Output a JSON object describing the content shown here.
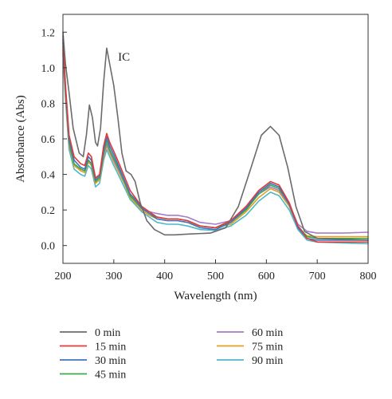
{
  "chart_data": {
    "type": "line",
    "title": "",
    "xlabel": "Wavelength (nm)",
    "ylabel": "Absorbance (Abs)",
    "xlim": [
      200,
      800
    ],
    "ylim": [
      -0.1,
      1.3
    ],
    "xticks": [
      200,
      300,
      400,
      500,
      600,
      700,
      800
    ],
    "yticks": [
      "0.0",
      "0.2",
      "0.4",
      "0.6",
      "0.8",
      "1.0",
      "1.2"
    ],
    "grid": false,
    "legend_position": "bottom",
    "annotation": {
      "text": "IC",
      "x": 320,
      "y": 1.04
    },
    "series": [
      {
        "name": "0 min",
        "color": "#6b6b6b",
        "points": [
          [
            200,
            1.2
          ],
          [
            205,
            1.02
          ],
          [
            212,
            0.86
          ],
          [
            220,
            0.66
          ],
          [
            232,
            0.52
          ],
          [
            240,
            0.5
          ],
          [
            246,
            0.62
          ],
          [
            252,
            0.79
          ],
          [
            258,
            0.72
          ],
          [
            264,
            0.58
          ],
          [
            268,
            0.56
          ],
          [
            274,
            0.66
          ],
          [
            280,
            0.92
          ],
          [
            286,
            1.11
          ],
          [
            292,
            1.02
          ],
          [
            300,
            0.9
          ],
          [
            308,
            0.72
          ],
          [
            316,
            0.52
          ],
          [
            324,
            0.42
          ],
          [
            334,
            0.4
          ],
          [
            342,
            0.36
          ],
          [
            352,
            0.24
          ],
          [
            365,
            0.14
          ],
          [
            380,
            0.09
          ],
          [
            400,
            0.06
          ],
          [
            420,
            0.06
          ],
          [
            450,
            0.065
          ],
          [
            490,
            0.07
          ],
          [
            520,
            0.1
          ],
          [
            545,
            0.22
          ],
          [
            570,
            0.44
          ],
          [
            590,
            0.62
          ],
          [
            608,
            0.67
          ],
          [
            625,
            0.62
          ],
          [
            642,
            0.44
          ],
          [
            658,
            0.22
          ],
          [
            675,
            0.08
          ],
          [
            700,
            0.04
          ],
          [
            750,
            0.035
          ],
          [
            800,
            0.03
          ]
        ]
      },
      {
        "name": "15 min",
        "color": "#e03a3a",
        "points": [
          [
            200,
            1.18
          ],
          [
            205,
            0.9
          ],
          [
            212,
            0.62
          ],
          [
            222,
            0.5
          ],
          [
            235,
            0.46
          ],
          [
            243,
            0.45
          ],
          [
            250,
            0.52
          ],
          [
            256,
            0.5
          ],
          [
            264,
            0.38
          ],
          [
            272,
            0.4
          ],
          [
            280,
            0.56
          ],
          [
            286,
            0.63
          ],
          [
            292,
            0.58
          ],
          [
            300,
            0.53
          ],
          [
            312,
            0.45
          ],
          [
            322,
            0.38
          ],
          [
            332,
            0.31
          ],
          [
            342,
            0.27
          ],
          [
            355,
            0.22
          ],
          [
            370,
            0.19
          ],
          [
            385,
            0.16
          ],
          [
            405,
            0.15
          ],
          [
            425,
            0.15
          ],
          [
            445,
            0.14
          ],
          [
            470,
            0.11
          ],
          [
            500,
            0.1
          ],
          [
            530,
            0.14
          ],
          [
            560,
            0.22
          ],
          [
            585,
            0.31
          ],
          [
            608,
            0.36
          ],
          [
            625,
            0.34
          ],
          [
            645,
            0.24
          ],
          [
            662,
            0.11
          ],
          [
            680,
            0.04
          ],
          [
            700,
            0.02
          ],
          [
            750,
            0.02
          ],
          [
            800,
            0.02
          ]
        ]
      },
      {
        "name": "30 min",
        "color": "#3f72c4",
        "points": [
          [
            200,
            1.16
          ],
          [
            205,
            0.88
          ],
          [
            212,
            0.6
          ],
          [
            222,
            0.48
          ],
          [
            235,
            0.44
          ],
          [
            243,
            0.43
          ],
          [
            250,
            0.5
          ],
          [
            256,
            0.48
          ],
          [
            264,
            0.37
          ],
          [
            272,
            0.39
          ],
          [
            280,
            0.54
          ],
          [
            286,
            0.61
          ],
          [
            292,
            0.56
          ],
          [
            300,
            0.51
          ],
          [
            312,
            0.43
          ],
          [
            322,
            0.36
          ],
          [
            332,
            0.29
          ],
          [
            342,
            0.26
          ],
          [
            355,
            0.21
          ],
          [
            370,
            0.18
          ],
          [
            385,
            0.15
          ],
          [
            405,
            0.14
          ],
          [
            425,
            0.14
          ],
          [
            445,
            0.13
          ],
          [
            470,
            0.1
          ],
          [
            500,
            0.09
          ],
          [
            530,
            0.13
          ],
          [
            560,
            0.21
          ],
          [
            585,
            0.3
          ],
          [
            608,
            0.35
          ],
          [
            625,
            0.33
          ],
          [
            645,
            0.23
          ],
          [
            662,
            0.1
          ],
          [
            680,
            0.04
          ],
          [
            700,
            0.03
          ],
          [
            750,
            0.03
          ],
          [
            800,
            0.03
          ]
        ]
      },
      {
        "name": "45 min",
        "color": "#3ca84a",
        "points": [
          [
            200,
            1.14
          ],
          [
            205,
            0.86
          ],
          [
            212,
            0.58
          ],
          [
            222,
            0.46
          ],
          [
            235,
            0.43
          ],
          [
            243,
            0.42
          ],
          [
            250,
            0.48
          ],
          [
            256,
            0.46
          ],
          [
            264,
            0.36
          ],
          [
            272,
            0.38
          ],
          [
            280,
            0.52
          ],
          [
            286,
            0.59
          ],
          [
            292,
            0.54
          ],
          [
            300,
            0.49
          ],
          [
            312,
            0.42
          ],
          [
            322,
            0.35
          ],
          [
            332,
            0.28
          ],
          [
            342,
            0.25
          ],
          [
            355,
            0.21
          ],
          [
            370,
            0.18
          ],
          [
            385,
            0.16
          ],
          [
            405,
            0.15
          ],
          [
            425,
            0.15
          ],
          [
            445,
            0.14
          ],
          [
            470,
            0.11
          ],
          [
            500,
            0.1
          ],
          [
            530,
            0.13
          ],
          [
            560,
            0.2
          ],
          [
            585,
            0.29
          ],
          [
            608,
            0.34
          ],
          [
            625,
            0.32
          ],
          [
            645,
            0.23
          ],
          [
            662,
            0.11
          ],
          [
            680,
            0.05
          ],
          [
            700,
            0.04
          ],
          [
            750,
            0.04
          ],
          [
            800,
            0.04
          ]
        ]
      },
      {
        "name": "60 min",
        "color": "#a57cc9",
        "points": [
          [
            200,
            1.12
          ],
          [
            205,
            0.85
          ],
          [
            212,
            0.57
          ],
          [
            222,
            0.46
          ],
          [
            235,
            0.43
          ],
          [
            243,
            0.42
          ],
          [
            250,
            0.48
          ],
          [
            256,
            0.46
          ],
          [
            264,
            0.36
          ],
          [
            272,
            0.38
          ],
          [
            280,
            0.51
          ],
          [
            286,
            0.57
          ],
          [
            292,
            0.53
          ],
          [
            300,
            0.48
          ],
          [
            312,
            0.41
          ],
          [
            322,
            0.35
          ],
          [
            332,
            0.28
          ],
          [
            342,
            0.25
          ],
          [
            355,
            0.21
          ],
          [
            370,
            0.19
          ],
          [
            385,
            0.18
          ],
          [
            405,
            0.17
          ],
          [
            425,
            0.17
          ],
          [
            445,
            0.16
          ],
          [
            470,
            0.13
          ],
          [
            500,
            0.12
          ],
          [
            530,
            0.14
          ],
          [
            560,
            0.21
          ],
          [
            585,
            0.29
          ],
          [
            608,
            0.33
          ],
          [
            625,
            0.31
          ],
          [
            645,
            0.23
          ],
          [
            662,
            0.12
          ],
          [
            680,
            0.08
          ],
          [
            700,
            0.07
          ],
          [
            750,
            0.07
          ],
          [
            800,
            0.075
          ]
        ]
      },
      {
        "name": "75 min",
        "color": "#e0a020",
        "points": [
          [
            200,
            1.1
          ],
          [
            205,
            0.84
          ],
          [
            212,
            0.56
          ],
          [
            222,
            0.45
          ],
          [
            235,
            0.42
          ],
          [
            243,
            0.41
          ],
          [
            250,
            0.47
          ],
          [
            256,
            0.45
          ],
          [
            264,
            0.35
          ],
          [
            272,
            0.37
          ],
          [
            280,
            0.5
          ],
          [
            286,
            0.56
          ],
          [
            292,
            0.52
          ],
          [
            300,
            0.47
          ],
          [
            312,
            0.4
          ],
          [
            322,
            0.34
          ],
          [
            332,
            0.27
          ],
          [
            342,
            0.24
          ],
          [
            355,
            0.2
          ],
          [
            370,
            0.17
          ],
          [
            385,
            0.15
          ],
          [
            405,
            0.14
          ],
          [
            425,
            0.14
          ],
          [
            445,
            0.13
          ],
          [
            470,
            0.11
          ],
          [
            500,
            0.1
          ],
          [
            530,
            0.12
          ],
          [
            560,
            0.19
          ],
          [
            585,
            0.27
          ],
          [
            608,
            0.32
          ],
          [
            625,
            0.3
          ],
          [
            645,
            0.22
          ],
          [
            662,
            0.1
          ],
          [
            680,
            0.055
          ],
          [
            700,
            0.05
          ],
          [
            750,
            0.05
          ],
          [
            800,
            0.05
          ]
        ]
      },
      {
        "name": "90 min",
        "color": "#4fb8c6",
        "points": [
          [
            200,
            1.08
          ],
          [
            205,
            0.82
          ],
          [
            212,
            0.54
          ],
          [
            222,
            0.43
          ],
          [
            235,
            0.4
          ],
          [
            243,
            0.39
          ],
          [
            250,
            0.45
          ],
          [
            256,
            0.43
          ],
          [
            264,
            0.33
          ],
          [
            272,
            0.35
          ],
          [
            280,
            0.48
          ],
          [
            286,
            0.54
          ],
          [
            292,
            0.5
          ],
          [
            300,
            0.45
          ],
          [
            312,
            0.38
          ],
          [
            322,
            0.32
          ],
          [
            332,
            0.26
          ],
          [
            342,
            0.23
          ],
          [
            355,
            0.19
          ],
          [
            370,
            0.16
          ],
          [
            385,
            0.13
          ],
          [
            405,
            0.12
          ],
          [
            425,
            0.12
          ],
          [
            445,
            0.11
          ],
          [
            470,
            0.09
          ],
          [
            500,
            0.085
          ],
          [
            530,
            0.11
          ],
          [
            560,
            0.17
          ],
          [
            585,
            0.25
          ],
          [
            608,
            0.3
          ],
          [
            625,
            0.28
          ],
          [
            645,
            0.2
          ],
          [
            662,
            0.09
          ],
          [
            680,
            0.03
          ],
          [
            700,
            0.02
          ],
          [
            750,
            0.015
          ],
          [
            800,
            0.01
          ]
        ]
      }
    ]
  }
}
